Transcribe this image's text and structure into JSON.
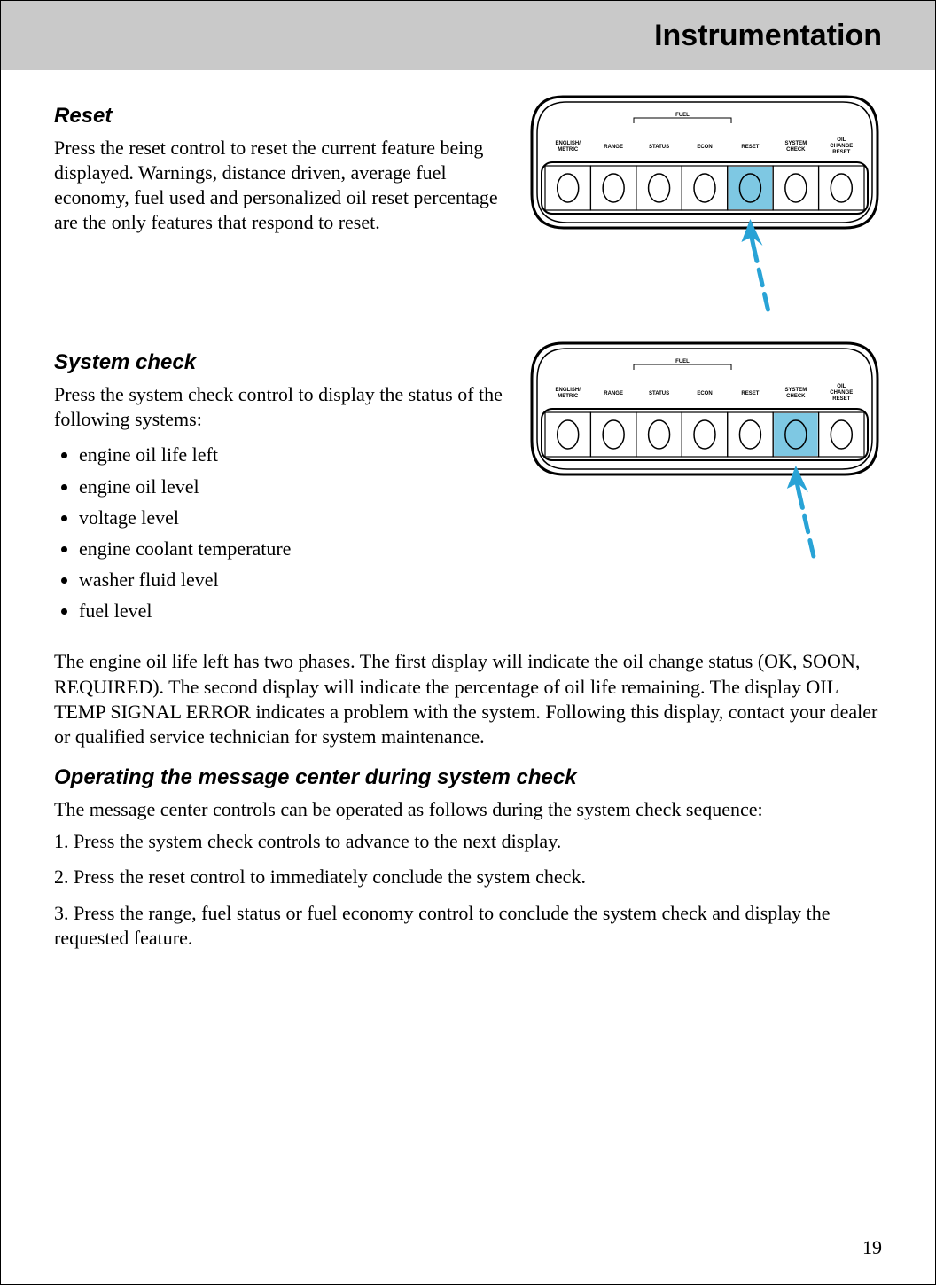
{
  "header": {
    "title": "Instrumentation"
  },
  "reset": {
    "heading": "Reset",
    "body": "Press the reset control to reset the current feature being displayed. Warnings, distance driven, average fuel economy, fuel used and personalized oil reset percentage are the only features that respond to reset."
  },
  "system_check": {
    "heading": "System check",
    "intro": "Press the system check control to display the status of the following systems:",
    "items": [
      "engine oil life left",
      "engine oil level",
      "voltage level",
      "engine coolant temperature",
      "washer fluid level",
      "fuel level"
    ],
    "para": "The engine oil life left has two phases. The first display will indicate the oil change status (OK, SOON, REQUIRED). The second display will indicate the percentage of oil life remaining. The display OIL TEMP SIGNAL ERROR indicates a problem with the system. Following this display, contact your dealer or qualified service technician for system maintenance."
  },
  "operating": {
    "heading": "Operating the message center during system check",
    "intro": "The message center controls can be operated as follows during the system check sequence:",
    "steps": [
      "1. Press the system check controls to advance to the next display.",
      "2. Press the reset control to immediately conclude the system check.",
      "3. Press the range, fuel status or fuel economy control to conclude the system check and display the requested feature."
    ]
  },
  "panel": {
    "fuel_label": "FUEL",
    "buttons": [
      {
        "l1": "ENGLISH/",
        "l2": "METRIC"
      },
      {
        "l1": "RANGE",
        "l2": ""
      },
      {
        "l1": "STATUS",
        "l2": ""
      },
      {
        "l1": "ECON",
        "l2": ""
      },
      {
        "l1": "RESET",
        "l2": ""
      },
      {
        "l1": "SYSTEM",
        "l2": "CHECK"
      },
      {
        "l1": "OIL",
        "l2": "CHANGE",
        "l3": "RESET"
      }
    ],
    "highlight_color": "#7ec8e3",
    "arrow_color": "#29a3d6",
    "panel_stroke": "#000000",
    "panel_fill": "#ffffff"
  },
  "figures": {
    "reset_highlight_index": 4,
    "system_check_highlight_index": 5
  },
  "page_number": "19"
}
